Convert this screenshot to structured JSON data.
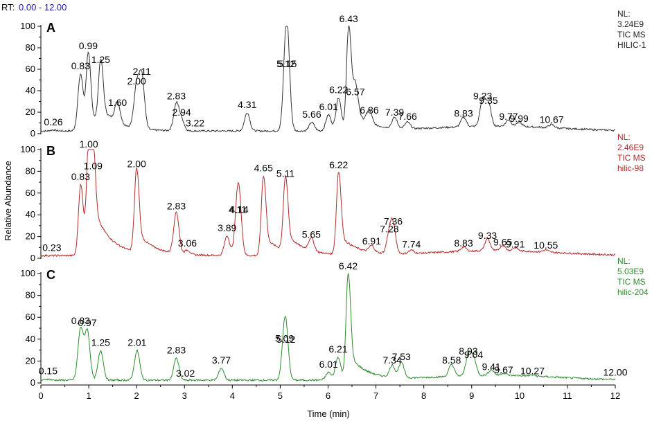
{
  "header": {
    "rt_label": "RT:",
    "rt_range": "0.00 - 12.00",
    "rt_color": "#1a1aa8"
  },
  "chart_data": {
    "type": "line",
    "xlabel": "Time (min)",
    "ylabel": "Relative Abundance",
    "xlim": [
      0,
      12
    ],
    "ylim": [
      0,
      100
    ],
    "x_ticks": [
      0,
      1,
      2,
      3,
      4,
      5,
      6,
      7,
      8,
      9,
      10,
      11,
      12
    ],
    "y_ticks": [
      0,
      20,
      40,
      60,
      80,
      100
    ],
    "grid": false,
    "panels": [
      {
        "letter": "A",
        "color": "#333333",
        "info_color": "#222222",
        "info": [
          "NL:",
          "3.24E9",
          "TIC  MS",
          "HILIC-1"
        ],
        "peaks": [
          {
            "rt": 0.26,
            "label": "0.26",
            "height": 4
          },
          {
            "rt": 0.83,
            "label": "0.83",
            "height": 56
          },
          {
            "rt": 0.99,
            "label": "0.99",
            "height": 75
          },
          {
            "rt": 1.25,
            "label": "1.25",
            "height": 62
          },
          {
            "rt": 1.6,
            "label": "1.60",
            "height": 22
          },
          {
            "rt": 2.0,
            "label": "2.00",
            "height": 42
          },
          {
            "rt": 2.11,
            "label": "2.11",
            "height": 51
          },
          {
            "rt": 2.83,
            "label": "2.83",
            "height": 28
          },
          {
            "rt": 2.94,
            "label": "2.94",
            "height": 13
          },
          {
            "rt": 3.22,
            "label": "3.22",
            "height": 3
          },
          {
            "rt": 4.31,
            "label": "4.31",
            "height": 20
          },
          {
            "rt": 5.12,
            "label": "5.12",
            "height": 58
          },
          {
            "rt": 5.15,
            "label": "5.15",
            "height": 58
          },
          {
            "rt": 5.66,
            "label": "5.66",
            "height": 11
          },
          {
            "rt": 6.01,
            "label": "6.01",
            "height": 18
          },
          {
            "rt": 6.22,
            "label": "6.22",
            "height": 34
          },
          {
            "rt": 6.43,
            "label": "6.43",
            "height": 100
          },
          {
            "rt": 6.57,
            "label": "6.57",
            "height": 32
          },
          {
            "rt": 6.86,
            "label": "6.86",
            "height": 15
          },
          {
            "rt": 7.39,
            "label": "7.39",
            "height": 13
          },
          {
            "rt": 7.66,
            "label": "7.66",
            "height": 9
          },
          {
            "rt": 8.83,
            "label": "8.83",
            "height": 12
          },
          {
            "rt": 9.23,
            "label": "9.23",
            "height": 28
          },
          {
            "rt": 9.35,
            "label": "9.35",
            "height": 24
          },
          {
            "rt": 9.77,
            "label": "9.77",
            "height": 9
          },
          {
            "rt": 9.99,
            "label": "9.99",
            "height": 7
          },
          {
            "rt": 10.67,
            "label": "10.67",
            "height": 6
          }
        ]
      },
      {
        "letter": "B",
        "color": "#b22a2a",
        "info_color": "#b22a2a",
        "info": [
          "NL:",
          "2.46E9",
          "TIC  MS",
          "hilic-98"
        ],
        "peaks": [
          {
            "rt": 0.23,
            "label": "0.23",
            "height": 3
          },
          {
            "rt": 0.83,
            "label": "0.83",
            "height": 68
          },
          {
            "rt": 1.0,
            "label": "1.00",
            "height": 98
          },
          {
            "rt": 1.09,
            "label": "1.09",
            "height": 78
          },
          {
            "rt": 2.0,
            "label": "2.00",
            "height": 80
          },
          {
            "rt": 2.83,
            "label": "2.83",
            "height": 41
          },
          {
            "rt": 3.06,
            "label": "3.06",
            "height": 7
          },
          {
            "rt": 3.89,
            "label": "3.89",
            "height": 21
          },
          {
            "rt": 4.11,
            "label": "4.11",
            "height": 38
          },
          {
            "rt": 4.14,
            "label": "4.14",
            "height": 38
          },
          {
            "rt": 4.65,
            "label": "4.65",
            "height": 76
          },
          {
            "rt": 5.11,
            "label": "5.11",
            "height": 71
          },
          {
            "rt": 5.65,
            "label": "5.65",
            "height": 15
          },
          {
            "rt": 6.22,
            "label": "6.22",
            "height": 79
          },
          {
            "rt": 6.91,
            "label": "6.91",
            "height": 9
          },
          {
            "rt": 7.28,
            "label": "7.28",
            "height": 20
          },
          {
            "rt": 7.36,
            "label": "7.36",
            "height": 27
          },
          {
            "rt": 7.74,
            "label": "7.74",
            "height": 6
          },
          {
            "rt": 8.83,
            "label": "8.83",
            "height": 7
          },
          {
            "rt": 9.33,
            "label": "9.33",
            "height": 14
          },
          {
            "rt": 9.65,
            "label": "9.65",
            "height": 8
          },
          {
            "rt": 9.91,
            "label": "9.91",
            "height": 6
          },
          {
            "rt": 10.55,
            "label": "10.55",
            "height": 5
          }
        ]
      },
      {
        "letter": "C",
        "color": "#2e8b2e",
        "info_color": "#2e8b2e",
        "info": [
          "NL:",
          "5.03E9",
          "TIC  MS",
          "hilic-204"
        ],
        "peaks": [
          {
            "rt": 0.15,
            "label": "0.15",
            "height": 4
          },
          {
            "rt": 0.83,
            "label": "0.83",
            "height": 50
          },
          {
            "rt": 0.97,
            "label": "0.97",
            "height": 48
          },
          {
            "rt": 1.25,
            "label": "1.25",
            "height": 30
          },
          {
            "rt": 2.01,
            "label": "2.01",
            "height": 30
          },
          {
            "rt": 2.83,
            "label": "2.83",
            "height": 23
          },
          {
            "rt": 3.02,
            "label": "3.02",
            "height": 2
          },
          {
            "rt": 3.77,
            "label": "3.77",
            "height": 14
          },
          {
            "rt": 5.09,
            "label": "5.09",
            "height": 34
          },
          {
            "rt": 5.12,
            "label": "5.12",
            "height": 33
          },
          {
            "rt": 6.01,
            "label": "6.01",
            "height": 10
          },
          {
            "rt": 6.21,
            "label": "6.21",
            "height": 24
          },
          {
            "rt": 6.42,
            "label": "6.42",
            "height": 100
          },
          {
            "rt": 7.34,
            "label": "7.34",
            "height": 14
          },
          {
            "rt": 7.53,
            "label": "7.53",
            "height": 17
          },
          {
            "rt": 8.58,
            "label": "8.58",
            "height": 14
          },
          {
            "rt": 8.93,
            "label": "8.93",
            "height": 22
          },
          {
            "rt": 9.04,
            "label": "9.04",
            "height": 19
          },
          {
            "rt": 9.41,
            "label": "9.41",
            "height": 8
          },
          {
            "rt": 9.67,
            "label": "9.67",
            "height": 5
          },
          {
            "rt": 10.27,
            "label": "10.27",
            "height": 4
          },
          {
            "rt": 12.0,
            "label": "12.00",
            "height": 3
          }
        ]
      }
    ]
  }
}
